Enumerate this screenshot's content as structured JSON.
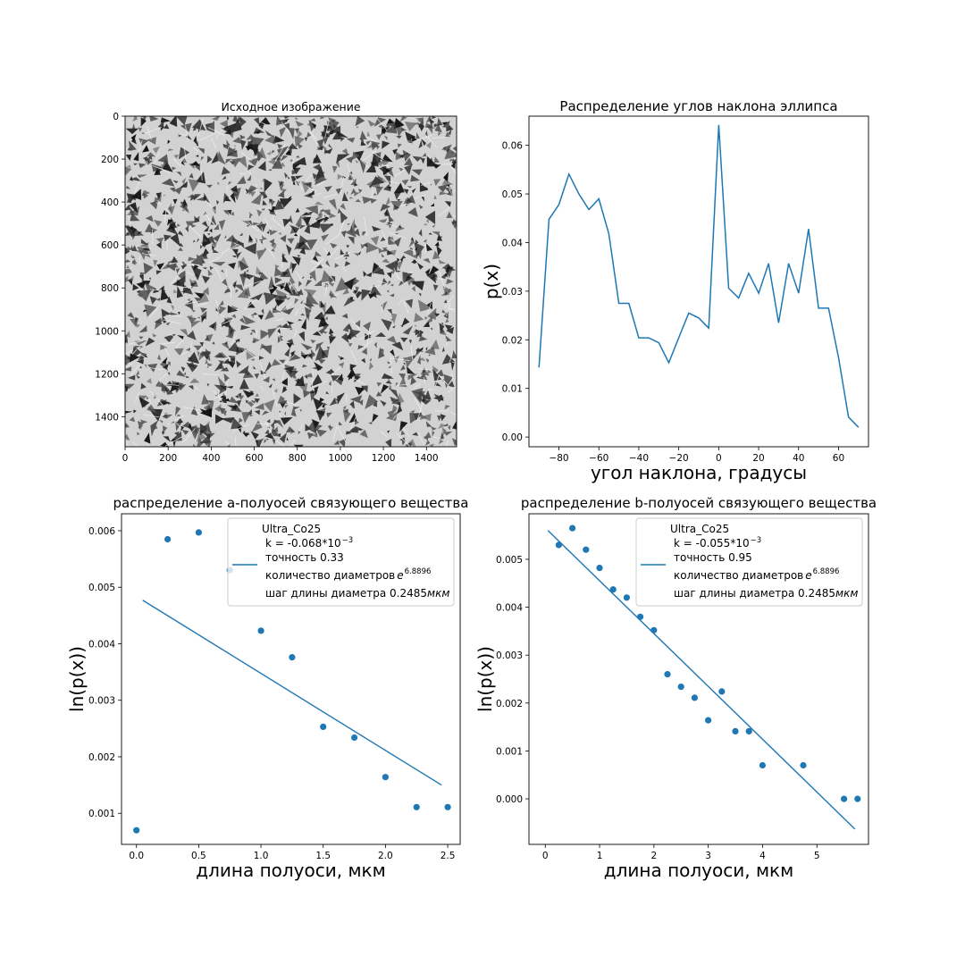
{
  "colors": {
    "series": "#1f77b4",
    "image_light": "#d2d2d2",
    "image_dark": "#1e1e1e"
  },
  "chart_data": [
    {
      "type": "heatmap",
      "title": "Исходное изображение",
      "content": "grayscale micrograph",
      "xlim": [
        0,
        1540
      ],
      "ylim": [
        1540,
        0
      ],
      "xticks": [
        "0",
        "200",
        "400",
        "600",
        "800",
        "1000",
        "1200",
        "1400"
      ],
      "yticks": [
        "0",
        "200",
        "400",
        "600",
        "800",
        "1000",
        "1200",
        "1400"
      ]
    },
    {
      "type": "line",
      "title": "Распределение углов наклона эллипса",
      "xlabel": "угол наклона, градусы",
      "ylabel": "p(x)",
      "xlim": [
        -95,
        75
      ],
      "ylim": [
        -0.002,
        0.066
      ],
      "xticks": [
        "−80",
        "−60",
        "−40",
        "−20",
        "0",
        "20",
        "40",
        "60"
      ],
      "yticks": [
        "0.00",
        "0.01",
        "0.02",
        "0.03",
        "0.04",
        "0.05",
        "0.06"
      ],
      "x": [
        -90,
        -85,
        -80,
        -75,
        -70,
        -65,
        -60,
        -55,
        -50,
        -45,
        -40,
        -35,
        -30,
        -25,
        -20,
        -15,
        -10,
        -5,
        0,
        5,
        10,
        15,
        20,
        25,
        30,
        35,
        40,
        45,
        50,
        55,
        60,
        65,
        70
      ],
      "y": [
        0.0143,
        0.0448,
        0.0478,
        0.0541,
        0.05,
        0.0468,
        0.049,
        0.0418,
        0.0275,
        0.0275,
        0.0204,
        0.0204,
        0.0194,
        0.0153,
        0.0204,
        0.0255,
        0.0245,
        0.0224,
        0.0642,
        0.0306,
        0.0286,
        0.0337,
        0.0296,
        0.0357,
        0.0235,
        0.0357,
        0.0296,
        0.0428,
        0.0265,
        0.0265,
        0.0163,
        0.0041,
        0.002
      ]
    },
    {
      "type": "scatter",
      "title": "распределение a-полуосей связующего вещества",
      "xlabel": "длина полуоси, мкм",
      "ylabel": "ln(p(x))",
      "xlim": [
        -0.12,
        2.6
      ],
      "ylim": [
        0.00045,
        0.0063
      ],
      "xticks": [
        "0.0",
        "0.5",
        "1.0",
        "1.5",
        "2.0",
        "2.5"
      ],
      "yticks": [
        "0.001",
        "0.002",
        "0.003",
        "0.004",
        "0.005",
        "0.006"
      ],
      "points": {
        "x": [
          0.0,
          0.25,
          0.5,
          0.75,
          1.0,
          1.25,
          1.5,
          1.75,
          2.0,
          2.25,
          2.5
        ],
        "y": [
          0.0007,
          0.00585,
          0.00597,
          0.0053,
          0.00423,
          0.00376,
          0.00253,
          0.00234,
          0.00164,
          0.00111,
          0.00111
        ]
      },
      "fit": {
        "x": [
          0.05,
          2.45
        ],
        "y": [
          0.00477,
          0.0015
        ]
      },
      "legend": {
        "placement": "upper right",
        "title": "Ultra_Co25",
        "k": "k = -0.068*10",
        "k_exp": "−3",
        "accuracy": "точность 0.33",
        "count_text": "количество диаметров  ",
        "count_base": "e",
        "count_exp": "6.8896",
        "step_text": "шаг длины диаметра 0.2485",
        "step_unit": "мкм"
      }
    },
    {
      "type": "scatter",
      "title": "распределение b-полуосей связующего вещества",
      "xlabel": "длина полуоси, мкм",
      "ylabel": "ln(p(x))",
      "xlim": [
        -0.3,
        5.95
      ],
      "ylim": [
        -0.00095,
        0.00595
      ],
      "xticks": [
        "0",
        "1",
        "2",
        "3",
        "4",
        "5"
      ],
      "yticks": [
        "0.000",
        "0.001",
        "0.002",
        "0.003",
        "0.004",
        "0.005"
      ],
      "points": {
        "x": [
          0.25,
          0.5,
          0.75,
          1.0,
          1.25,
          1.5,
          1.75,
          2.0,
          2.25,
          2.5,
          2.75,
          3.0,
          3.25,
          3.5,
          3.75,
          4.0,
          4.75,
          5.5,
          5.75
        ],
        "y": [
          0.0053,
          0.00565,
          0.0052,
          0.00482,
          0.00437,
          0.0042,
          0.0038,
          0.00352,
          0.0026,
          0.00234,
          0.00211,
          0.00164,
          0.00224,
          0.00141,
          0.00141,
          0.0007,
          0.0007,
          0.0,
          0.0
        ]
      },
      "fit": {
        "x": [
          0.05,
          5.7
        ],
        "y": [
          0.0056,
          -0.00063
        ]
      },
      "legend": {
        "placement": "upper right",
        "title": "Ultra_Co25",
        "k": "k = -0.055*10",
        "k_exp": "−3",
        "accuracy": "точность 0.95",
        "count_text": "количество диаметров  ",
        "count_base": "e",
        "count_exp": "6.8896",
        "step_text": "шаг длины диаметра 0.2485",
        "step_unit": "мкм"
      }
    }
  ]
}
